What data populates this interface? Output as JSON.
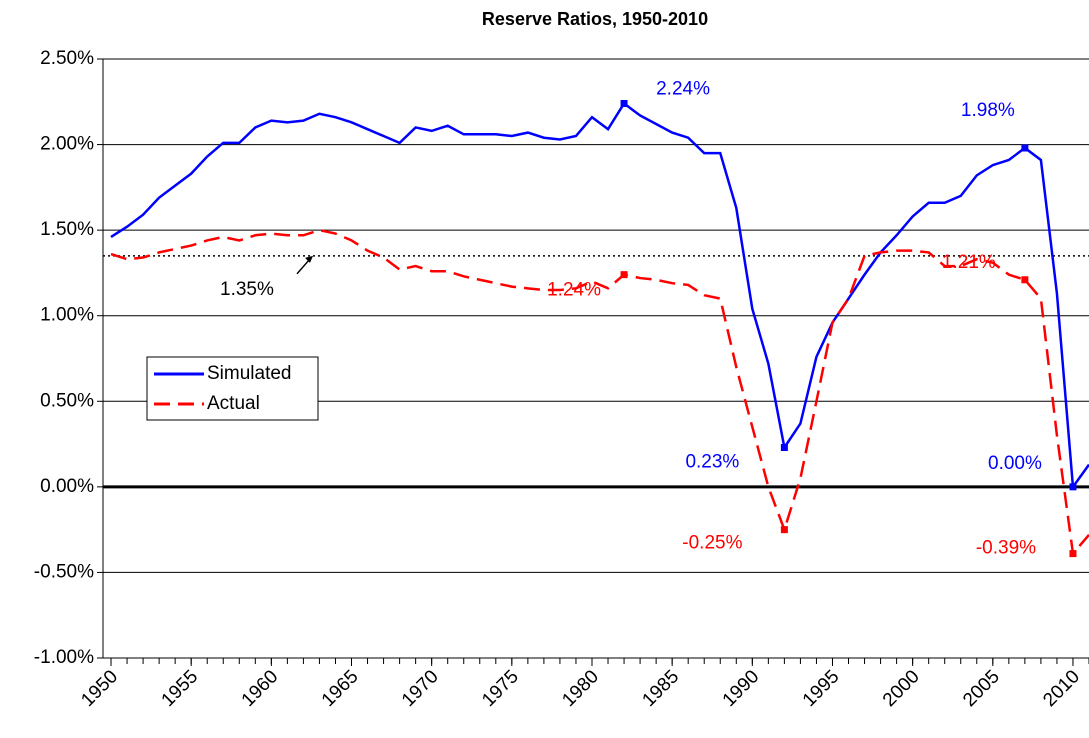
{
  "chart_data": {
    "type": "line",
    "title": "Reserve Ratios, 1950-2010",
    "x": [
      1950,
      1951,
      1952,
      1953,
      1954,
      1955,
      1956,
      1957,
      1958,
      1959,
      1960,
      1961,
      1962,
      1963,
      1964,
      1965,
      1966,
      1967,
      1968,
      1969,
      1970,
      1971,
      1972,
      1973,
      1974,
      1975,
      1976,
      1977,
      1978,
      1979,
      1980,
      1981,
      1982,
      1983,
      1984,
      1985,
      1986,
      1987,
      1988,
      1989,
      1990,
      1991,
      1992,
      1993,
      1994,
      1995,
      1996,
      1997,
      1998,
      1999,
      2000,
      2001,
      2002,
      2003,
      2004,
      2005,
      2006,
      2007,
      2008,
      2009,
      2010,
      2011
    ],
    "series": [
      {
        "name": "Simulated",
        "color": "#0000ff",
        "dash": false,
        "values": [
          1.46,
          1.52,
          1.59,
          1.69,
          1.76,
          1.83,
          1.93,
          2.01,
          2.01,
          2.1,
          2.14,
          2.13,
          2.14,
          2.18,
          2.16,
          2.13,
          2.09,
          2.05,
          2.01,
          2.1,
          2.08,
          2.11,
          2.06,
          2.06,
          2.06,
          2.05,
          2.07,
          2.04,
          2.03,
          2.05,
          2.16,
          2.09,
          2.24,
          2.17,
          2.12,
          2.07,
          2.04,
          1.95,
          1.95,
          1.63,
          1.04,
          0.72,
          0.23,
          0.37,
          0.76,
          0.96,
          1.1,
          1.24,
          1.37,
          1.47,
          1.58,
          1.66,
          1.66,
          1.7,
          1.82,
          1.88,
          1.91,
          1.98,
          1.91,
          1.13,
          0.0,
          0.13
        ],
        "value_labels": [
          null,
          null,
          null,
          null,
          null,
          null,
          null,
          null,
          null,
          null,
          null,
          null,
          null,
          null,
          null,
          null,
          null,
          null,
          null,
          null,
          null,
          null,
          null,
          null,
          null,
          null,
          null,
          null,
          null,
          null,
          null,
          null,
          "2.24%",
          null,
          null,
          null,
          null,
          null,
          null,
          null,
          null,
          null,
          "0.23%",
          null,
          null,
          null,
          null,
          null,
          null,
          null,
          null,
          null,
          null,
          null,
          null,
          null,
          null,
          "1.98%",
          null,
          null,
          "0.00%",
          null
        ]
      },
      {
        "name": "Actual",
        "color": "#ff0000",
        "dash": true,
        "values": [
          1.36,
          1.33,
          1.34,
          1.37,
          1.39,
          1.41,
          1.44,
          1.46,
          1.44,
          1.47,
          1.48,
          1.47,
          1.47,
          1.5,
          1.48,
          1.44,
          1.38,
          1.34,
          1.27,
          1.29,
          1.26,
          1.26,
          1.23,
          1.21,
          1.19,
          1.17,
          1.16,
          1.15,
          1.15,
          1.16,
          1.2,
          1.16,
          1.24,
          1.22,
          1.21,
          1.19,
          1.18,
          1.12,
          1.1,
          0.7,
          0.35,
          0.0,
          -0.25,
          0.05,
          0.5,
          0.96,
          1.1,
          1.35,
          1.37,
          1.38,
          1.38,
          1.37,
          1.29,
          1.29,
          1.33,
          1.31,
          1.24,
          1.21,
          1.1,
          0.3,
          -0.39,
          -0.28
        ],
        "value_labels": [
          null,
          null,
          null,
          null,
          null,
          null,
          null,
          null,
          null,
          null,
          null,
          null,
          null,
          null,
          null,
          null,
          null,
          null,
          null,
          null,
          null,
          null,
          null,
          null,
          null,
          null,
          null,
          null,
          null,
          null,
          null,
          null,
          "1.24%",
          null,
          null,
          null,
          null,
          null,
          null,
          null,
          null,
          null,
          "-0.25%",
          null,
          null,
          null,
          null,
          null,
          null,
          null,
          null,
          null,
          null,
          null,
          null,
          null,
          null,
          "1.21%",
          null,
          null,
          "-0.39%",
          null
        ]
      }
    ],
    "reference_line": {
      "value": 1.35,
      "label": "1.35%"
    },
    "xlim": [
      1949.5,
      2011
    ],
    "xticks": [
      1950,
      1955,
      1960,
      1965,
      1970,
      1975,
      1980,
      1985,
      1990,
      1995,
      2000,
      2005,
      2010
    ],
    "ylim": [
      -1,
      2.5
    ],
    "yticks": [
      {
        "value": -1,
        "label": "-1.00%"
      },
      {
        "value": -0.5,
        "label": "-0.50%"
      },
      {
        "value": 0,
        "label": "0.00%"
      },
      {
        "value": 0.5,
        "label": "0.50%"
      },
      {
        "value": 1,
        "label": "1.00%"
      },
      {
        "value": 1.5,
        "label": "1.50%"
      },
      {
        "value": 2,
        "label": "2.00%"
      },
      {
        "value": 2.5,
        "label": "2.50%"
      }
    ],
    "grid": true,
    "legend_position": "left"
  }
}
